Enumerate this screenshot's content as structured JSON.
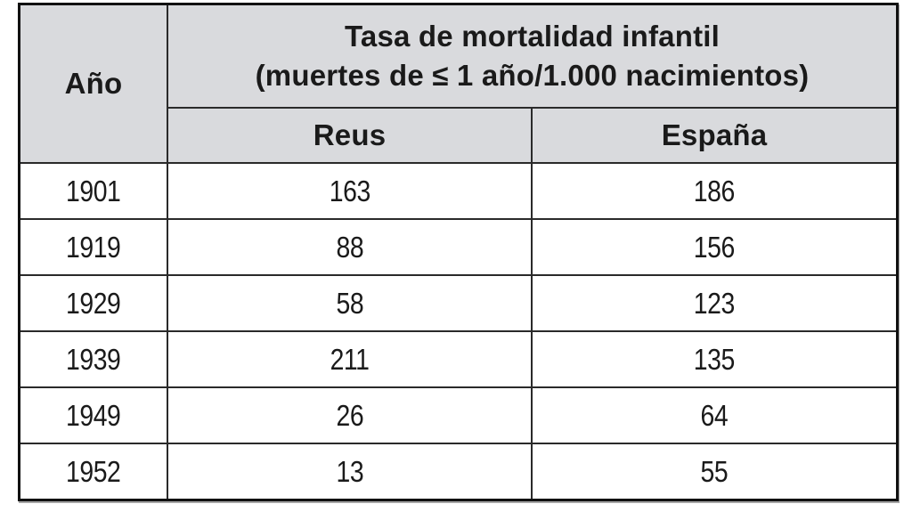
{
  "table": {
    "header": {
      "year_label": "Año",
      "main_title_line1": "Tasa de mortalidad infantil",
      "main_title_line2": "(muertes de ≤ 1 año/1.000 nacimientos)",
      "columns": [
        "Reus",
        "España"
      ]
    },
    "rows": [
      {
        "year": "1901",
        "reus": "163",
        "espana": "186"
      },
      {
        "year": "1919",
        "reus": "88",
        "espana": "156"
      },
      {
        "year": "1929",
        "reus": "58",
        "espana": "123"
      },
      {
        "year": "1939",
        "reus": "211",
        "espana": "135"
      },
      {
        "year": "1949",
        "reus": "26",
        "espana": "64"
      },
      {
        "year": "1952",
        "reus": "13",
        "espana": "55"
      }
    ]
  },
  "colors": {
    "header_background": "#d9dadd",
    "border": "#111111",
    "text": "#1a1a1a",
    "cell_background": "#ffffff"
  },
  "chart_data": {
    "type": "table",
    "title": "Tasa de mortalidad infantil (muertes de ≤ 1 año/1.000 nacimientos)",
    "columns": [
      "Año",
      "Reus",
      "España"
    ],
    "categories": [
      "1901",
      "1919",
      "1929",
      "1939",
      "1949",
      "1952"
    ],
    "series": [
      {
        "name": "Reus",
        "values": [
          163,
          88,
          58,
          211,
          26,
          13
        ]
      },
      {
        "name": "España",
        "values": [
          186,
          156,
          123,
          135,
          64,
          55
        ]
      }
    ]
  }
}
